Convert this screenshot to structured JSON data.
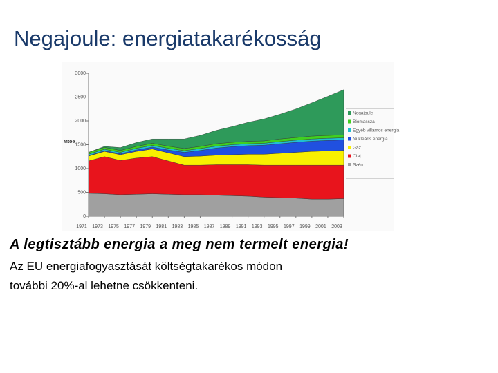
{
  "title": "Negajoule: energiatakarékosság",
  "chart_data": {
    "type": "stacked-area",
    "y_label": "Mtoe",
    "x": [
      1971,
      1973,
      1975,
      1977,
      1979,
      1981,
      1983,
      1985,
      1987,
      1989,
      1991,
      1993,
      1995,
      1997,
      1999,
      2001,
      2003
    ],
    "xlim": [
      1971,
      2003
    ],
    "xticks": [
      1971,
      1973,
      1975,
      1977,
      1979,
      1981,
      1983,
      1985,
      1987,
      1989,
      1991,
      1993,
      1995,
      1997,
      1999,
      2001,
      2003
    ],
    "ylim": [
      0,
      3000
    ],
    "yticks": [
      0,
      500,
      1000,
      1500,
      2000,
      2500,
      3000
    ],
    "series": [
      {
        "name": "Szén",
        "color": "#a0a0a0",
        "values": [
          480,
          470,
          450,
          460,
          470,
          460,
          450,
          450,
          440,
          430,
          420,
          400,
          390,
          380,
          360,
          360,
          370
        ]
      },
      {
        "name": "Olaj",
        "color": "#e8141c",
        "values": [
          680,
          780,
          720,
          760,
          780,
          700,
          620,
          620,
          640,
          650,
          660,
          670,
          680,
          690,
          710,
          710,
          700
        ]
      },
      {
        "name": "Gáz",
        "color": "#f8f000",
        "values": [
          100,
          110,
          120,
          140,
          160,
          170,
          180,
          190,
          200,
          210,
          220,
          230,
          250,
          270,
          290,
          300,
          310
        ]
      },
      {
        "name": "Nukleáris energia",
        "color": "#2050e0",
        "values": [
          10,
          15,
          20,
          30,
          40,
          60,
          90,
          120,
          150,
          170,
          180,
          190,
          200,
          210,
          215,
          220,
          220
        ]
      },
      {
        "name": "Egyéb villamos energia",
        "color": "#20c0d0",
        "values": [
          30,
          30,
          30,
          35,
          35,
          35,
          35,
          40,
          40,
          40,
          40,
          40,
          45,
          45,
          45,
          45,
          45
        ]
      },
      {
        "name": "Biomassza",
        "color": "#40d020",
        "values": [
          40,
          40,
          40,
          40,
          45,
          45,
          45,
          45,
          50,
          50,
          50,
          50,
          55,
          55,
          60,
          60,
          60
        ]
      },
      {
        "name": "Negajoule",
        "color": "#2e9a5a",
        "values": [
          0,
          20,
          60,
          80,
          90,
          150,
          200,
          230,
          280,
          330,
          400,
          460,
          520,
          600,
          700,
          820,
          950
        ]
      }
    ]
  },
  "body": {
    "headline": "A legtisztább energia a meg nem termelt energia!",
    "lines": [
      "Az EU energiafogyasztását költségtakarékos módon",
      "további 20%-al lehetne csökkenteni."
    ]
  }
}
